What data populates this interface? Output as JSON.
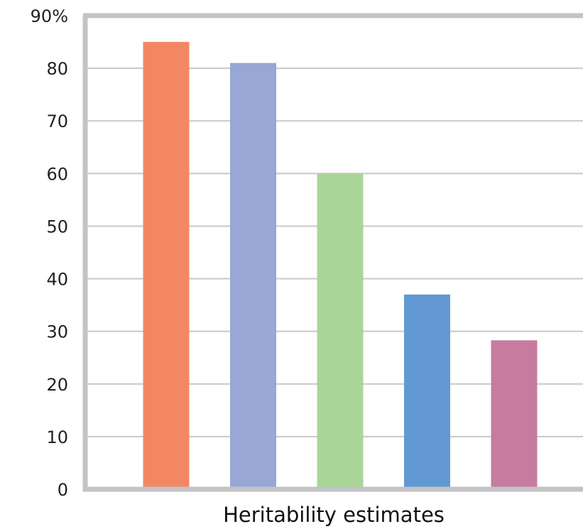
{
  "chart_data": {
    "type": "bar",
    "categories": [
      "",
      "",
      "",
      "",
      ""
    ],
    "values": [
      85,
      81,
      60,
      37,
      28.3
    ],
    "colors": [
      "#f38764",
      "#98a7d3",
      "#aad599",
      "#6299d3",
      "#c67b9f"
    ],
    "title": "",
    "xlabel": "Heritability estimates",
    "ylabel": "",
    "ylim": [
      0,
      90
    ],
    "yticks": [
      {
        "value": 0,
        "label": "0"
      },
      {
        "value": 10,
        "label": "10"
      },
      {
        "value": 20,
        "label": "20"
      },
      {
        "value": 30,
        "label": "30"
      },
      {
        "value": 40,
        "label": "40"
      },
      {
        "value": 50,
        "label": "50"
      },
      {
        "value": 60,
        "label": "60"
      },
      {
        "value": 70,
        "label": "70"
      },
      {
        "value": 80,
        "label": "80"
      },
      {
        "value": 90,
        "label": "90%"
      }
    ],
    "grid": true,
    "gridline_color": "#c8c8c8",
    "axis_color": "#c3c3c5",
    "legend": "none"
  }
}
